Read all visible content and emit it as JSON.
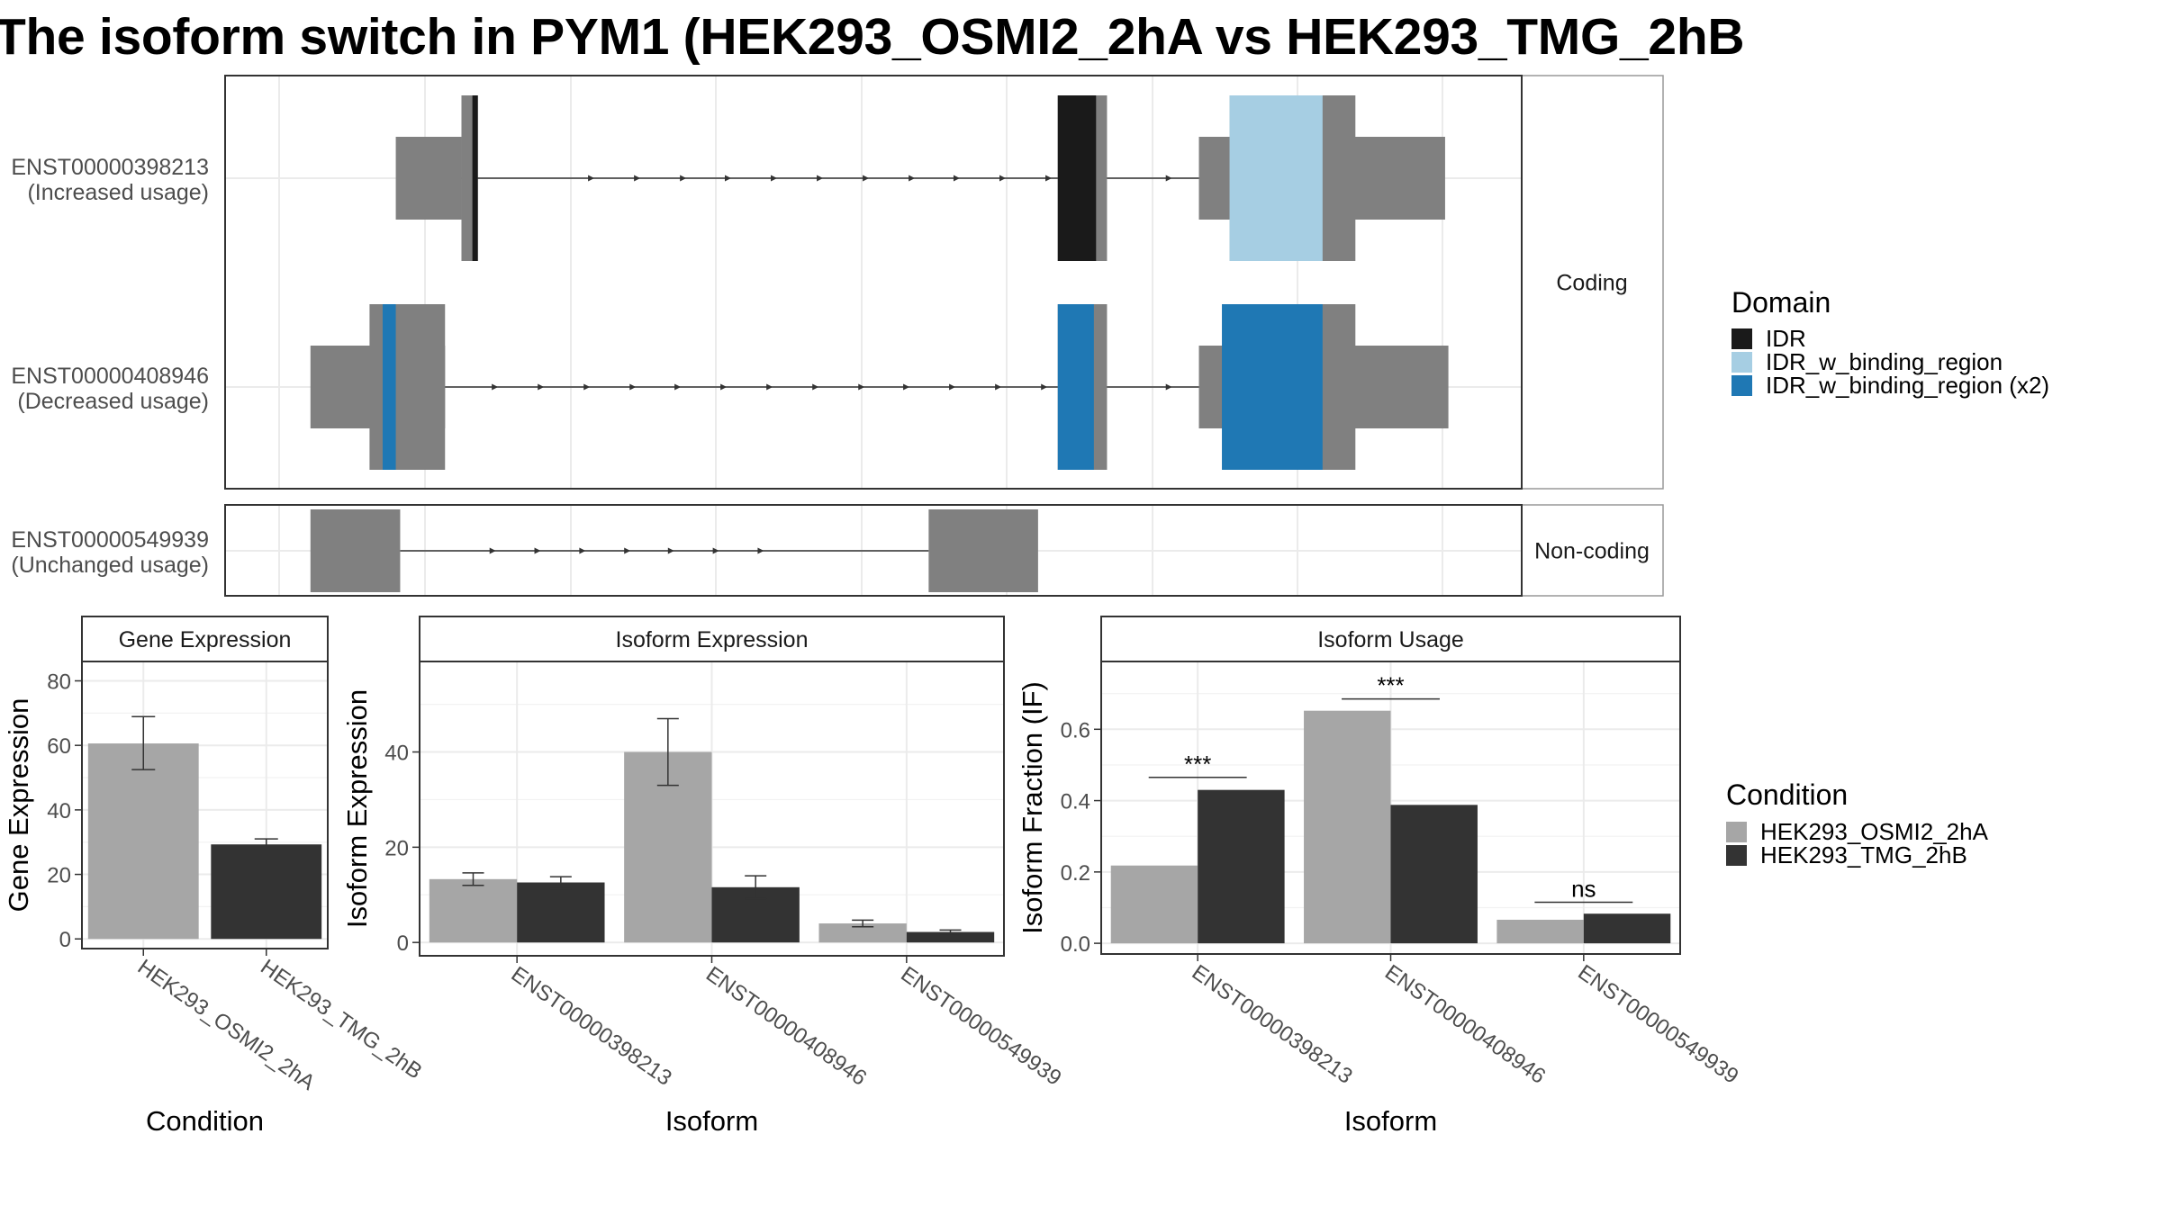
{
  "title": "The isoform switch in PYM1 (HEK293_OSMI2_2hA vs HEK293_TMG_2hB",
  "colors": {
    "exon": "#808080",
    "IDR": "#1a1a1a",
    "IDR_w_binding_region": "#a6cee3",
    "IDR_w_binding_region_x2": "#1f78b4",
    "cond_a": "#a6a6a6",
    "cond_b": "#333333",
    "grid": "#ebebeb",
    "strip_fill": "#ffffff",
    "axis_text": "#4d4d4d"
  },
  "structure": {
    "strip_coding": "Coding",
    "strip_noncoding": "Non-coding",
    "transcripts": [
      {
        "id": "ENST00000398213",
        "usage": "(Increased usage)",
        "group": "coding",
        "intron": [
          253,
          930
        ],
        "exons": [
          {
            "start": 196,
            "end": 256,
            "type": "utr"
          },
          {
            "start": 256,
            "end": 271,
            "type": "cds"
          },
          {
            "start": 801,
            "end": 846,
            "type": "cds"
          },
          {
            "start": 930,
            "end": 1155,
            "type": "utr"
          },
          {
            "start": 958,
            "end": 1073,
            "type": "cds"
          }
        ],
        "domains": [
          {
            "start": 266,
            "end": 271,
            "domain": "IDR"
          },
          {
            "start": 801,
            "end": 836,
            "domain": "IDR"
          },
          {
            "start": 958,
            "end": 1043,
            "domain": "IDR_w_binding_region"
          }
        ],
        "arrows": [
          375,
          417,
          459,
          500,
          542,
          584,
          626,
          668,
          709,
          751,
          793,
          903
        ]
      },
      {
        "id": "ENST00000408946",
        "usage": "(Decreased usage)",
        "group": "coding",
        "intron": [
          238,
          930
        ],
        "exons": [
          {
            "start": 118,
            "end": 241,
            "type": "utr"
          },
          {
            "start": 172,
            "end": 241,
            "type": "cds"
          },
          {
            "start": 801,
            "end": 846,
            "type": "cds"
          },
          {
            "start": 930,
            "end": 1158,
            "type": "utr"
          },
          {
            "start": 958,
            "end": 1073,
            "type": "cds"
          }
        ],
        "domains": [
          {
            "start": 184,
            "end": 196,
            "domain": "IDR_w_binding_region_x2"
          },
          {
            "start": 801,
            "end": 834,
            "domain": "IDR_w_binding_region_x2"
          },
          {
            "start": 951,
            "end": 1043,
            "domain": "IDR_w_binding_region_x2"
          }
        ],
        "arrows": [
          287,
          329,
          371,
          413,
          454,
          496,
          538,
          580,
          622,
          663,
          705,
          747,
          789,
          903
        ]
      },
      {
        "id": "ENST00000549939",
        "usage": "(Unchanged usage)",
        "group": "noncoding",
        "intron": [
          200,
          683
        ],
        "exons": [
          {
            "start": 118,
            "end": 200,
            "type": "utr"
          },
          {
            "start": 683,
            "end": 783,
            "type": "utr"
          }
        ],
        "domains": [],
        "arrows": [
          285,
          326,
          367,
          408,
          448,
          489,
          530
        ]
      }
    ],
    "xlim": [
      40,
      1225
    ]
  },
  "legend_domain": {
    "title": "Domain",
    "items": [
      "IDR",
      "IDR_w_binding_region",
      "IDR_w_binding_region (x2)"
    ]
  },
  "legend_condition": {
    "title": "Condition",
    "items": [
      "HEK293_OSMI2_2hA",
      "HEK293_TMG_2hB"
    ]
  },
  "chart_data": [
    {
      "type": "bar",
      "title": "Gene Expression",
      "xlabel": "Condition",
      "ylabel": "Gene Expression",
      "categories": [
        "HEK293_OSMI2_2hA",
        "HEK293_TMG_2hB"
      ],
      "values": [
        60.6,
        29.3
      ],
      "errors": [
        [
          52.5,
          68.9
        ],
        [
          27.9,
          31.0
        ]
      ],
      "yticks": [
        0,
        20,
        40,
        60,
        80
      ],
      "ylim": [
        -3,
        86
      ]
    },
    {
      "type": "bar",
      "title": "Isoform Expression",
      "xlabel": "Isoform",
      "ylabel": "Isoform Expression",
      "categories": [
        "ENST00000398213",
        "ENST00000408946",
        "ENST00000549939"
      ],
      "series": [
        {
          "name": "HEK293_OSMI2_2hA",
          "values": [
            13.3,
            40.0,
            4.0
          ],
          "errors": [
            [
              12.0,
              14.6
            ],
            [
              33.0,
              47.0
            ],
            [
              3.3,
              4.7
            ]
          ]
        },
        {
          "name": "HEK293_TMG_2hB",
          "values": [
            12.6,
            11.6,
            2.2
          ],
          "errors": [
            [
              11.3,
              13.8
            ],
            [
              9.2,
              14.0
            ],
            [
              1.8,
              2.6
            ]
          ]
        }
      ],
      "yticks": [
        0,
        20,
        40
      ],
      "ylim": [
        -2.8,
        59
      ]
    },
    {
      "type": "bar",
      "title": "Isoform Usage",
      "xlabel": "Isoform",
      "ylabel": "Isoform Fraction (IF)",
      "categories": [
        "ENST00000398213",
        "ENST00000408946",
        "ENST00000549939"
      ],
      "series": [
        {
          "name": "HEK293_OSMI2_2hA",
          "values": [
            0.218,
            0.652,
            0.066
          ]
        },
        {
          "name": "HEK293_TMG_2hB",
          "values": [
            0.43,
            0.388,
            0.083
          ]
        }
      ],
      "significance": [
        {
          "label": "***",
          "y": 0.465
        },
        {
          "label": "***",
          "y": 0.685
        },
        {
          "label": "ns",
          "y": 0.115
        }
      ],
      "yticks": [
        0.0,
        0.2,
        0.4,
        0.6
      ],
      "ylim": [
        -0.03,
        0.79
      ]
    }
  ]
}
